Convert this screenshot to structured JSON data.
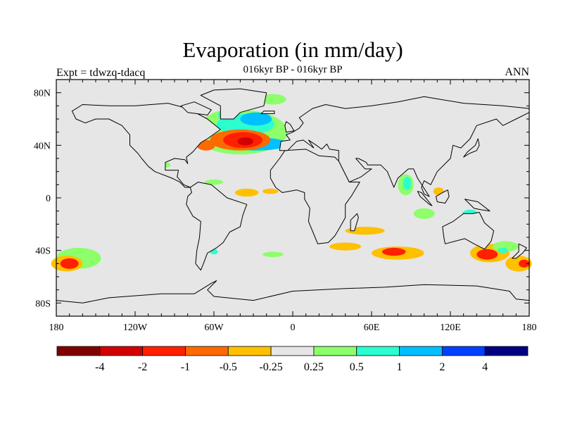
{
  "title": "Evaporation (in mm/day)",
  "subtitle_left": "Expt = tdwzq-tdacq",
  "subtitle_center": "016kyr BP - 016kyr BP",
  "subtitle_right": "ANN",
  "chart_data": {
    "type": "map-contour",
    "projection": "cylindrical-equidistant",
    "lon_range": [
      -180,
      180
    ],
    "lat_range": [
      -90,
      90
    ],
    "x_tick_labels": [
      "180",
      "120W",
      "60W",
      "0",
      "60E",
      "120E",
      "180"
    ],
    "x_tick_values": [
      -180,
      -120,
      -60,
      0,
      60,
      120,
      180
    ],
    "y_tick_labels": [
      "80N",
      "40N",
      "0",
      "40S",
      "80S"
    ],
    "y_tick_values": [
      80,
      40,
      0,
      -40,
      -80
    ],
    "background_color": "#e6e6e6",
    "colorbar": {
      "labels": [
        "-4",
        "-2",
        "-1",
        "-0.5",
        "-0.25",
        "0.25",
        "0.5",
        "1",
        "2",
        "4"
      ],
      "colors": [
        "#7f0000",
        "#d20000",
        "#ff2000",
        "#ff6a00",
        "#ffc000",
        "#e6e6e6",
        "#8cff6a",
        "#2bffd0",
        "#00c0ff",
        "#0040ff",
        "#000080"
      ]
    },
    "anomaly_regions": [
      {
        "lon": -40,
        "lat": 50,
        "rlon": 36,
        "rlat": 17,
        "level": 6
      },
      {
        "lon": -55,
        "lat": 58,
        "rlon": 10,
        "rlat": 8,
        "level": 6
      },
      {
        "lon": -15,
        "lat": 75,
        "rlon": 10,
        "rlat": 4,
        "level": 6
      },
      {
        "lon": -36,
        "lat": 56,
        "rlon": 22,
        "rlat": 8,
        "level": 7
      },
      {
        "lon": -50,
        "lat": 63,
        "rlon": 7,
        "rlat": 4,
        "level": 7
      },
      {
        "lon": -28,
        "lat": 60,
        "rlon": 12,
        "rlat": 5,
        "level": 8
      },
      {
        "lon": -28,
        "lat": 41,
        "rlon": 24,
        "rlat": 5,
        "level": 8
      },
      {
        "lon": -40,
        "lat": 44,
        "rlon": 23,
        "rlat": 8,
        "level": 3
      },
      {
        "lon": -38,
        "lat": 44,
        "rlon": 15,
        "rlat": 6,
        "level": 2
      },
      {
        "lon": -36,
        "lat": 43,
        "rlon": 6,
        "rlat": 3,
        "level": 1
      },
      {
        "lon": -66,
        "lat": 40,
        "rlon": 7,
        "rlat": 4,
        "level": 3
      },
      {
        "lon": -60,
        "lat": 12,
        "rlon": 7,
        "rlat": 2,
        "level": 6
      },
      {
        "lon": -10,
        "lat": 13,
        "rlon": 5,
        "rlat": 2,
        "level": 7
      },
      {
        "lon": -35,
        "lat": 4,
        "rlon": 9,
        "rlat": 3,
        "level": 4
      },
      {
        "lon": -17,
        "lat": 5,
        "rlon": 6,
        "rlat": 2,
        "level": 4
      },
      {
        "lon": -97,
        "lat": 25,
        "rlon": 4,
        "rlat": 2,
        "level": 6
      },
      {
        "lon": 86,
        "lat": 10,
        "rlon": 6,
        "rlat": 8,
        "level": 6
      },
      {
        "lon": 87,
        "lat": 11,
        "rlon": 3,
        "rlat": 5,
        "level": 7
      },
      {
        "lon": 111,
        "lat": 5,
        "rlon": 4,
        "rlat": 3,
        "level": 4
      },
      {
        "lon": 100,
        "lat": -12,
        "rlon": 8,
        "rlat": 4,
        "level": 6
      },
      {
        "lon": 135,
        "lat": -12,
        "rlon": 6,
        "rlat": 3,
        "level": 7
      },
      {
        "lon": 55,
        "lat": -25,
        "rlon": 15,
        "rlat": 3,
        "level": 4
      },
      {
        "lon": 40,
        "lat": -37,
        "rlon": 12,
        "rlat": 3,
        "level": 4
      },
      {
        "lon": 80,
        "lat": -42,
        "rlon": 20,
        "rlat": 5,
        "level": 4
      },
      {
        "lon": 77,
        "lat": -41,
        "rlon": 9,
        "rlat": 3,
        "level": 2
      },
      {
        "lon": 150,
        "lat": -42,
        "rlon": 15,
        "rlat": 7,
        "level": 4
      },
      {
        "lon": 148,
        "lat": -43,
        "rlon": 8,
        "rlat": 4,
        "level": 2
      },
      {
        "lon": 162,
        "lat": -37,
        "rlon": 10,
        "rlat": 4,
        "level": 6
      },
      {
        "lon": 160,
        "lat": -40,
        "rlon": 4,
        "rlat": 2,
        "level": 7
      },
      {
        "lon": 172,
        "lat": -50,
        "rlon": 10,
        "rlat": 6,
        "level": 4
      },
      {
        "lon": 176,
        "lat": -50,
        "rlon": 4,
        "rlat": 3,
        "level": 2
      },
      {
        "lon": -163,
        "lat": -46,
        "rlon": 17,
        "rlat": 8,
        "level": 6
      },
      {
        "lon": -172,
        "lat": -50,
        "rlon": 12,
        "rlat": 6,
        "level": 4
      },
      {
        "lon": -170,
        "lat": -50,
        "rlon": 7,
        "rlat": 4,
        "level": 2
      },
      {
        "lon": -15,
        "lat": -43,
        "rlon": 8,
        "rlat": 2,
        "level": 6
      },
      {
        "lon": -60,
        "lat": -41,
        "rlon": 3,
        "rlat": 2,
        "level": 7
      }
    ]
  }
}
